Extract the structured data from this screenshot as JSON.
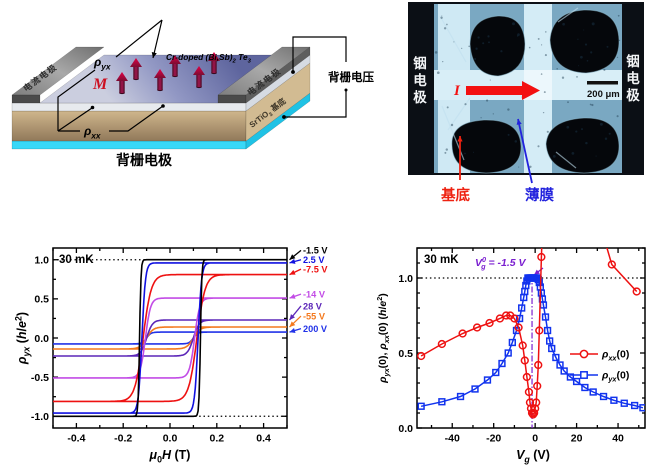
{
  "schematic": {
    "film_label_parts": [
      {
        "t": "Cr-doped (Bi,Sb)",
        "i": 1
      },
      {
        "t": "2",
        "sub": 1,
        "i": 1
      },
      {
        "t": " Te",
        "i": 1
      },
      {
        "t": "3",
        "sub": 1,
        "i": 1
      }
    ],
    "rho_yx_parts": [
      {
        "t": "ρ",
        "i": 1
      },
      {
        "t": "yx",
        "sub": 1,
        "i": 1
      }
    ],
    "rho_xx_parts": [
      {
        "t": "ρ",
        "i": 1
      },
      {
        "t": "xx",
        "sub": 1,
        "i": 1
      }
    ],
    "magnetization_label": "M",
    "electrode_label_left": "电流电极",
    "electrode_label_right": "电流电极",
    "substrate_label_parts": [
      {
        "t": "SrTiO"
      },
      {
        "t": "3",
        "sub": 1
      },
      {
        "t": " 基底"
      }
    ],
    "back_gate_voltage_label": "背栅电压",
    "back_gate_electrode_label": "背栅电极",
    "colors": {
      "gate_cyan": "#38d8f8",
      "substrate_tan": "#c3a87e",
      "electrode_gray": "#8f8f8f",
      "film_top_back": "#646ba4",
      "film_top_front": "#c7cade",
      "magnet_red": "#d40040",
      "magnet_dark": "#5c0e2e"
    }
  },
  "micrograph": {
    "electrode_label_left": "铟电极",
    "electrode_label_right": "铟电极",
    "current_label": "I",
    "scale_bar_label": "200 μm",
    "substrate_label": "基底",
    "film_label": "薄膜",
    "colors": {
      "substrate_text": "#ee2211",
      "film_text": "#2222dd",
      "bright": "#d8eef7",
      "film_blue": "#7aa8c2",
      "dark": "#070a0f"
    }
  },
  "chart_data": [
    {
      "type": "line",
      "title": "30 mK",
      "xlabel_parts": [
        {
          "t": "μ",
          "i": 1
        },
        {
          "t": "0",
          "sub": 1
        },
        {
          "t": "H",
          "i": 1
        },
        {
          "t": " (T)"
        }
      ],
      "ylabel_parts": [
        {
          "t": "ρ",
          "i": 1
        },
        {
          "t": "yx",
          "sub": 1,
          "i": 1
        },
        {
          "t": " ("
        },
        {
          "t": "h",
          "i": 1
        },
        {
          "t": "/"
        },
        {
          "t": "e",
          "i": 1
        },
        {
          "t": "2",
          "sup": 1
        },
        {
          "t": ")"
        }
      ],
      "xlim": [
        -0.5,
        0.5
      ],
      "ylim": [
        -1.15,
        1.15
      ],
      "xticks": [
        -0.4,
        -0.2,
        0.0,
        0.2,
        0.4
      ],
      "yticks": [
        -1.0,
        -0.5,
        0.0,
        0.5,
        1.0
      ],
      "xminor_step": 0.1,
      "yminor_step": 0.25,
      "reference_lines": [
        1.0,
        -1.0
      ],
      "series_note": "gate-voltage-dependent Hall hysteresis loops; each loop modeled by saturation value, coercive field (T) and transition width",
      "series": [
        {
          "label": "200 V",
          "color": "#2233e8",
          "saturation": 0.075,
          "coercive_field": 0.1,
          "transition_width": 0.018,
          "label_y": 0.12
        },
        {
          "label": "-55 V",
          "color": "#f4791e",
          "saturation": 0.14,
          "coercive_field": 0.1,
          "transition_width": 0.028,
          "label_y": 0.28
        },
        {
          "label": "28 V",
          "color": "#5c26b8",
          "saturation": 0.23,
          "coercive_field": 0.1,
          "transition_width": 0.025,
          "label_y": 0.41
        },
        {
          "label": "-14 V",
          "color": "#c24ce6",
          "saturation": 0.51,
          "coercive_field": 0.105,
          "transition_width": 0.022,
          "label_y": 0.56
        },
        {
          "label": "-7.5 V",
          "color": "#ee1111",
          "saturation": 0.81,
          "coercive_field": 0.115,
          "transition_width": 0.035,
          "label_y": 0.88
        },
        {
          "label": "2.5 V",
          "color": "#1111e0",
          "saturation": 0.96,
          "coercive_field": 0.12,
          "transition_width": 0.015,
          "label_y": 1.0
        },
        {
          "label": "-1.5 V",
          "color": "#000000",
          "saturation": 1.0,
          "coercive_field": 0.13,
          "transition_width": 0.006,
          "label_y": 1.12
        }
      ]
    },
    {
      "type": "scatter",
      "title": "30 mK",
      "xlabel_parts": [
        {
          "t": "V",
          "i": 1
        },
        {
          "t": "g",
          "sub": 1,
          "i": 1
        },
        {
          "t": " (V)"
        }
      ],
      "ylabel_parts": [
        {
          "t": "ρ",
          "i": 1
        },
        {
          "t": "yx",
          "sub": 1,
          "i": 1
        },
        {
          "t": "(0), "
        },
        {
          "t": "ρ",
          "i": 1
        },
        {
          "t": "xx",
          "sub": 1,
          "i": 1
        },
        {
          "t": "(0) ("
        },
        {
          "t": "h",
          "i": 1
        },
        {
          "t": "/"
        },
        {
          "t": "e",
          "i": 1
        },
        {
          "t": "2",
          "sup": 1
        },
        {
          "t": ")"
        }
      ],
      "xlim": [
        -57,
        53
      ],
      "ylim": [
        0,
        1.2
      ],
      "xticks": [
        -40,
        -20,
        0,
        20,
        40
      ],
      "yticks": [
        0.0,
        0.5,
        1.0
      ],
      "xminor_step": 10,
      "yminor_step": 0.1,
      "reference_lines": [
        1.0
      ],
      "annotation": {
        "parts": [
          {
            "t": "V",
            "i": 1
          },
          {
            "t": "0",
            "sup": 1
          },
          {
            "t": "g",
            "sub": 1,
            "i": 1,
            "dx": -5
          },
          {
            "t": " = -1.5 V"
          }
        ],
        "x_value": -1.5,
        "color": "#7b1fd0"
      },
      "series": [
        {
          "name_parts": [
            {
              "t": "ρ",
              "i": 1
            },
            {
              "t": "xx",
              "sub": 1,
              "i": 1
            },
            {
              "t": "(0)"
            }
          ],
          "color": "#ee1111",
          "marker": "circle",
          "segments": [
            [
              [
                -55,
                0.48
              ],
              [
                -45,
                0.56
              ],
              [
                -35,
                0.63
              ],
              [
                -28,
                0.67
              ],
              [
                -22,
                0.7
              ],
              [
                -17,
                0.73
              ],
              [
                -14,
                0.75
              ],
              [
                -12,
                0.75
              ],
              [
                -10,
                0.73
              ],
              [
                -8,
                0.67
              ],
              [
                -6,
                0.55
              ],
              [
                -5,
                0.45
              ],
              [
                -4,
                0.34
              ],
              [
                -3,
                0.24
              ],
              [
                -2.5,
                0.17
              ],
              [
                -2,
                0.13
              ],
              [
                -1.5,
                0.1
              ],
              [
                -1,
                0.09
              ],
              [
                -0.5,
                0.1
              ],
              [
                0,
                0.13
              ],
              [
                0.5,
                0.17
              ],
              [
                1,
                0.28
              ],
              [
                1.5,
                0.42
              ],
              [
                2,
                0.65
              ],
              [
                3,
                1.14
              ],
              [
                3.8,
                1.45
              ]
            ],
            [
              [
                30,
                1.42
              ],
              [
                37,
                1.09
              ],
              [
                49,
                0.91
              ]
            ]
          ]
        },
        {
          "name_parts": [
            {
              "t": "ρ",
              "i": 1
            },
            {
              "t": "yx",
              "sub": 1,
              "i": 1
            },
            {
              "t": "(0)"
            }
          ],
          "color": "#1133ee",
          "marker": "square",
          "plateau_range": [
            -4,
            1.5
          ],
          "segments": [
            [
              [
                -55,
                0.145
              ],
              [
                -45,
                0.175
              ],
              [
                -36,
                0.21
              ],
              [
                -29,
                0.26
              ],
              [
                -23,
                0.32
              ],
              [
                -19,
                0.37
              ],
              [
                -16,
                0.43
              ],
              [
                -13,
                0.5
              ],
              [
                -11,
                0.57
              ],
              [
                -9,
                0.65
              ],
              [
                -7.5,
                0.73
              ],
              [
                -6.5,
                0.8
              ],
              [
                -5.5,
                0.87
              ],
              [
                -5,
                0.91
              ],
              [
                -4.5,
                0.95
              ],
              [
                -4,
                0.98
              ],
              [
                -3.5,
                1.0
              ],
              [
                -3,
                1.0
              ],
              [
                -2.5,
                1.0
              ],
              [
                -2,
                1.0
              ],
              [
                -1.5,
                1.0
              ],
              [
                -1,
                1.0
              ],
              [
                -0.5,
                1.0
              ],
              [
                0,
                1.0
              ],
              [
                0.5,
                1.0
              ],
              [
                1,
                1.0
              ],
              [
                1.5,
                0.99
              ],
              [
                2,
                0.97
              ],
              [
                2.5,
                0.94
              ],
              [
                3,
                0.9
              ],
              [
                3.5,
                0.86
              ],
              [
                4,
                0.82
              ],
              [
                5,
                0.74
              ],
              [
                6,
                0.65
              ],
              [
                7,
                0.58
              ],
              [
                8,
                0.53
              ],
              [
                10,
                0.47
              ],
              [
                12,
                0.42
              ],
              [
                14,
                0.38
              ],
              [
                17,
                0.34
              ],
              [
                20,
                0.31
              ],
              [
                24,
                0.27
              ],
              [
                28,
                0.24
              ],
              [
                33,
                0.21
              ],
              [
                38,
                0.185
              ],
              [
                43,
                0.165
              ],
              [
                48,
                0.15
              ],
              [
                52,
                0.135
              ]
            ]
          ]
        }
      ]
    }
  ]
}
